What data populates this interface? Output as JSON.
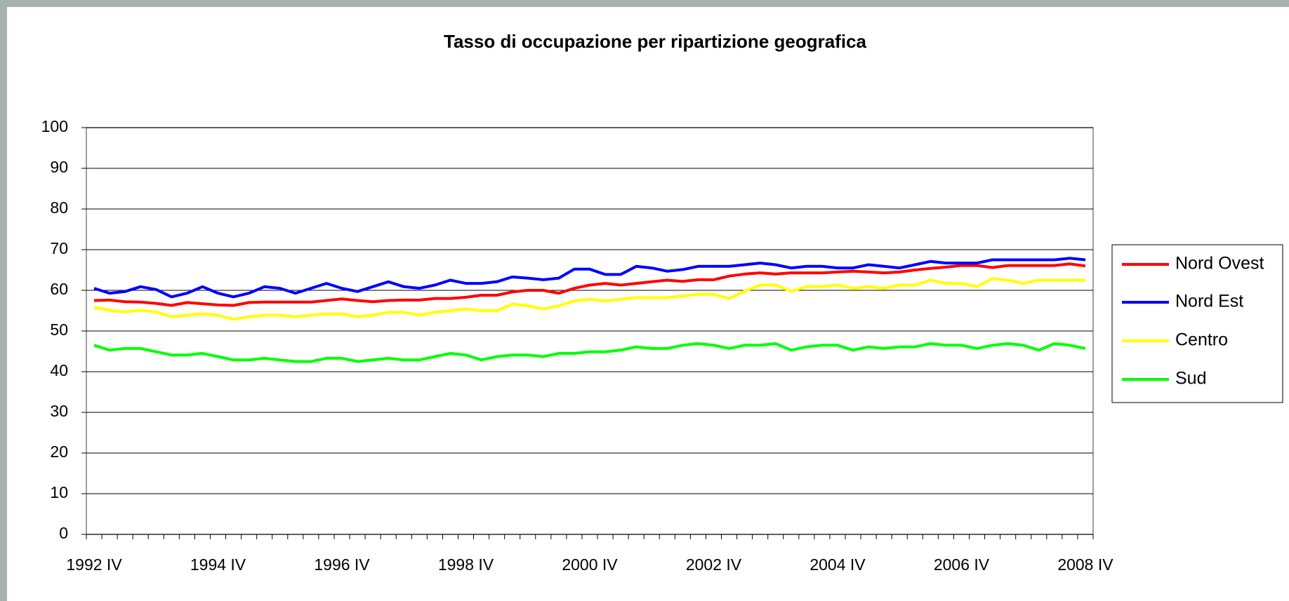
{
  "chart_data": {
    "type": "line",
    "title": "Tasso di occupazione per ripartizione geografica",
    "categories": [
      "1992 IV",
      null,
      null,
      null,
      null,
      null,
      null,
      null,
      "1994 IV",
      null,
      null,
      null,
      null,
      null,
      null,
      null,
      "1996 IV",
      null,
      null,
      null,
      null,
      null,
      null,
      null,
      "1998 IV",
      null,
      null,
      null,
      null,
      null,
      null,
      null,
      "2000 IV",
      null,
      null,
      null,
      null,
      null,
      null,
      null,
      "2002 IV",
      null,
      null,
      null,
      null,
      null,
      null,
      null,
      "2004 IV",
      null,
      null,
      null,
      null,
      null,
      null,
      null,
      "2006 IV",
      null,
      null,
      null,
      null,
      null,
      null,
      null,
      "2008 IV"
    ],
    "series": [
      {
        "name": "Nord Ovest",
        "color": "#ff0000",
        "values": [
          57.5,
          57.6,
          57.2,
          57.1,
          56.8,
          56.3,
          57.0,
          56.7,
          56.4,
          56.3,
          57.0,
          57.1,
          57.1,
          57.1,
          57.1,
          57.5,
          57.9,
          57.5,
          57.2,
          57.5,
          57.6,
          57.6,
          58.0,
          58.0,
          58.3,
          58.8,
          58.8,
          59.6,
          60.0,
          60.0,
          59.3,
          60.5,
          61.3,
          61.7,
          61.3,
          61.7,
          62.1,
          62.5,
          62.2,
          62.6,
          62.6,
          63.5,
          64.0,
          64.3,
          64.0,
          64.3,
          64.3,
          64.3,
          64.5,
          64.7,
          64.5,
          64.3,
          64.5,
          65.0,
          65.4,
          65.7,
          66.1,
          66.1,
          65.6,
          66.1,
          66.1,
          66.1,
          66.1,
          66.5,
          66.0
        ]
      },
      {
        "name": "Nord Est",
        "color": "#0000ff",
        "values": [
          60.5,
          59.3,
          59.7,
          60.9,
          60.2,
          58.4,
          59.3,
          60.9,
          59.3,
          58.4,
          59.3,
          60.9,
          60.5,
          59.3,
          60.5,
          61.7,
          60.5,
          59.7,
          60.9,
          62.1,
          60.9,
          60.5,
          61.3,
          62.5,
          61.7,
          61.7,
          62.1,
          63.3,
          63.0,
          62.6,
          63.0,
          65.2,
          65.2,
          63.9,
          63.9,
          65.9,
          65.5,
          64.7,
          65.1,
          65.9,
          65.9,
          65.9,
          66.3,
          66.7,
          66.3,
          65.5,
          65.9,
          65.9,
          65.5,
          65.5,
          66.3,
          65.9,
          65.5,
          66.3,
          67.1,
          66.7,
          66.7,
          66.7,
          67.5,
          67.5,
          67.5,
          67.5,
          67.5,
          67.9,
          67.5
        ]
      },
      {
        "name": "Centro",
        "color": "#ffff00",
        "values": [
          55.8,
          55.1,
          54.7,
          55.1,
          54.7,
          53.5,
          53.9,
          54.2,
          53.9,
          52.9,
          53.5,
          53.9,
          53.9,
          53.5,
          53.9,
          54.2,
          54.2,
          53.5,
          53.9,
          54.6,
          54.6,
          53.9,
          54.6,
          55.0,
          55.4,
          55.0,
          55.0,
          56.6,
          56.2,
          55.4,
          56.2,
          57.4,
          57.8,
          57.4,
          57.8,
          58.2,
          58.2,
          58.2,
          58.6,
          59.0,
          59.0,
          58.0,
          59.8,
          61.3,
          61.3,
          59.8,
          60.9,
          60.9,
          61.3,
          60.5,
          60.9,
          60.5,
          61.3,
          61.3,
          62.5,
          61.7,
          61.7,
          60.9,
          62.9,
          62.5,
          61.7,
          62.5,
          62.5,
          62.5,
          62.5
        ]
      },
      {
        "name": "Sud",
        "color": "#00ff00",
        "values": [
          46.5,
          45.3,
          45.7,
          45.7,
          44.9,
          44.1,
          44.1,
          44.5,
          43.7,
          42.9,
          42.9,
          43.3,
          42.9,
          42.5,
          42.5,
          43.3,
          43.3,
          42.5,
          42.9,
          43.3,
          42.9,
          42.9,
          43.7,
          44.5,
          44.1,
          42.9,
          43.7,
          44.1,
          44.1,
          43.7,
          44.5,
          44.5,
          44.9,
          44.9,
          45.3,
          46.1,
          45.7,
          45.7,
          46.5,
          46.9,
          46.5,
          45.7,
          46.5,
          46.5,
          46.9,
          45.3,
          46.1,
          46.5,
          46.5,
          45.3,
          46.1,
          45.7,
          46.1,
          46.1,
          46.9,
          46.5,
          46.5,
          45.7,
          46.5,
          46.9,
          46.5,
          45.3,
          46.9,
          46.5,
          45.7
        ]
      }
    ],
    "ylim": [
      0,
      100
    ],
    "yticks": [
      0,
      10,
      20,
      30,
      40,
      50,
      60,
      70,
      80,
      90,
      100
    ],
    "grid": true,
    "legend": "right"
  }
}
